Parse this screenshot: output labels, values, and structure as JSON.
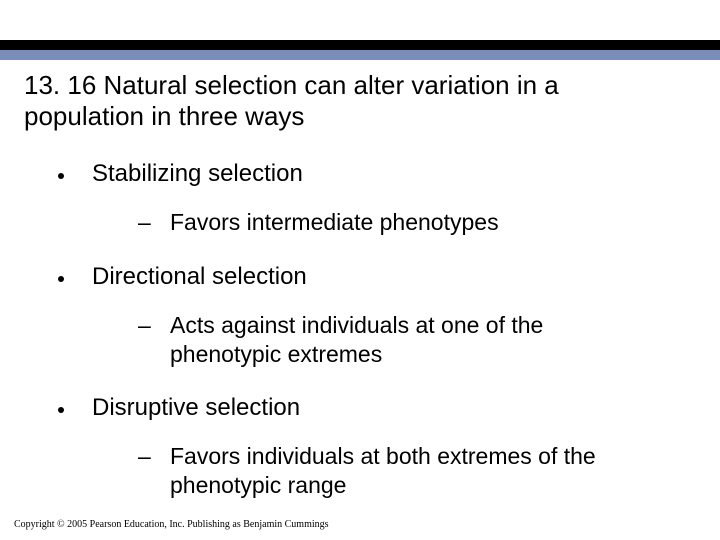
{
  "colors": {
    "top_bar": "#000000",
    "accent_bar": "#7a8cb8",
    "text": "#000000",
    "background": "#ffffff"
  },
  "typography": {
    "title_fontsize": 26,
    "body_fontsize": 24,
    "sub_fontsize": 23,
    "copyright_fontsize": 10,
    "font_family": "Arial"
  },
  "title": "13. 16 Natural selection can alter variation in a population in three ways",
  "items": [
    {
      "label": "Stabilizing selection",
      "sub": "Favors intermediate phenotypes"
    },
    {
      "label": "Directional selection",
      "sub": "Acts against individuals at one of the phenotypic extremes"
    },
    {
      "label": "Disruptive selection",
      "sub": "Favors individuals at both extremes of the phenotypic range"
    }
  ],
  "copyright": "Copyright © 2005 Pearson Education, Inc. Publishing as Benjamin Cummings"
}
